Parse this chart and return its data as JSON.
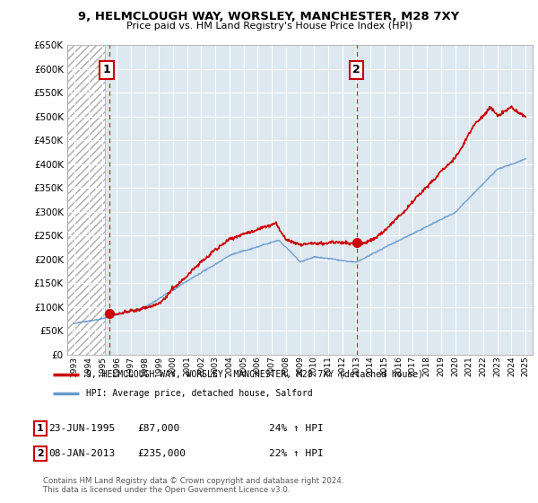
{
  "title": "9, HELMCLOUGH WAY, WORSLEY, MANCHESTER, M28 7XY",
  "subtitle": "Price paid vs. HM Land Registry's House Price Index (HPI)",
  "ylim": [
    0,
    650000
  ],
  "yticks": [
    0,
    50000,
    100000,
    150000,
    200000,
    250000,
    300000,
    350000,
    400000,
    450000,
    500000,
    550000,
    600000,
    650000
  ],
  "sale1": {
    "date_num": 1995.48,
    "price": 87000,
    "label": "1"
  },
  "sale2": {
    "date_num": 2013.03,
    "price": 235000,
    "label": "2"
  },
  "legend_entry1": "9, HELMCLOUGH WAY, WORSLEY, MANCHESTER, M28 7XY (detached house)",
  "legend_entry2": "HPI: Average price, detached house, Salford",
  "table_row1": [
    "1",
    "23-JUN-1995",
    "£87,000",
    "24% ↑ HPI"
  ],
  "table_row2": [
    "2",
    "08-JAN-2013",
    "£235,000",
    "22% ↑ HPI"
  ],
  "footnote": "Contains HM Land Registry data © Crown copyright and database right 2024.\nThis data is licensed under the Open Government Licence v3.0.",
  "hpi_color": "#6699cc",
  "sale_color": "#cc0000",
  "vline_color": "#cc0000",
  "grid_color": "#bbbbcc",
  "bg_color": "#dde8f0",
  "xlim": [
    1992.5,
    2025.5
  ],
  "xticks": [
    1993,
    1994,
    1995,
    1996,
    1997,
    1998,
    1999,
    2000,
    2001,
    2002,
    2003,
    2004,
    2005,
    2006,
    2007,
    2008,
    2009,
    2010,
    2011,
    2012,
    2013,
    2014,
    2015,
    2016,
    2017,
    2018,
    2019,
    2020,
    2021,
    2022,
    2023,
    2024,
    2025
  ]
}
